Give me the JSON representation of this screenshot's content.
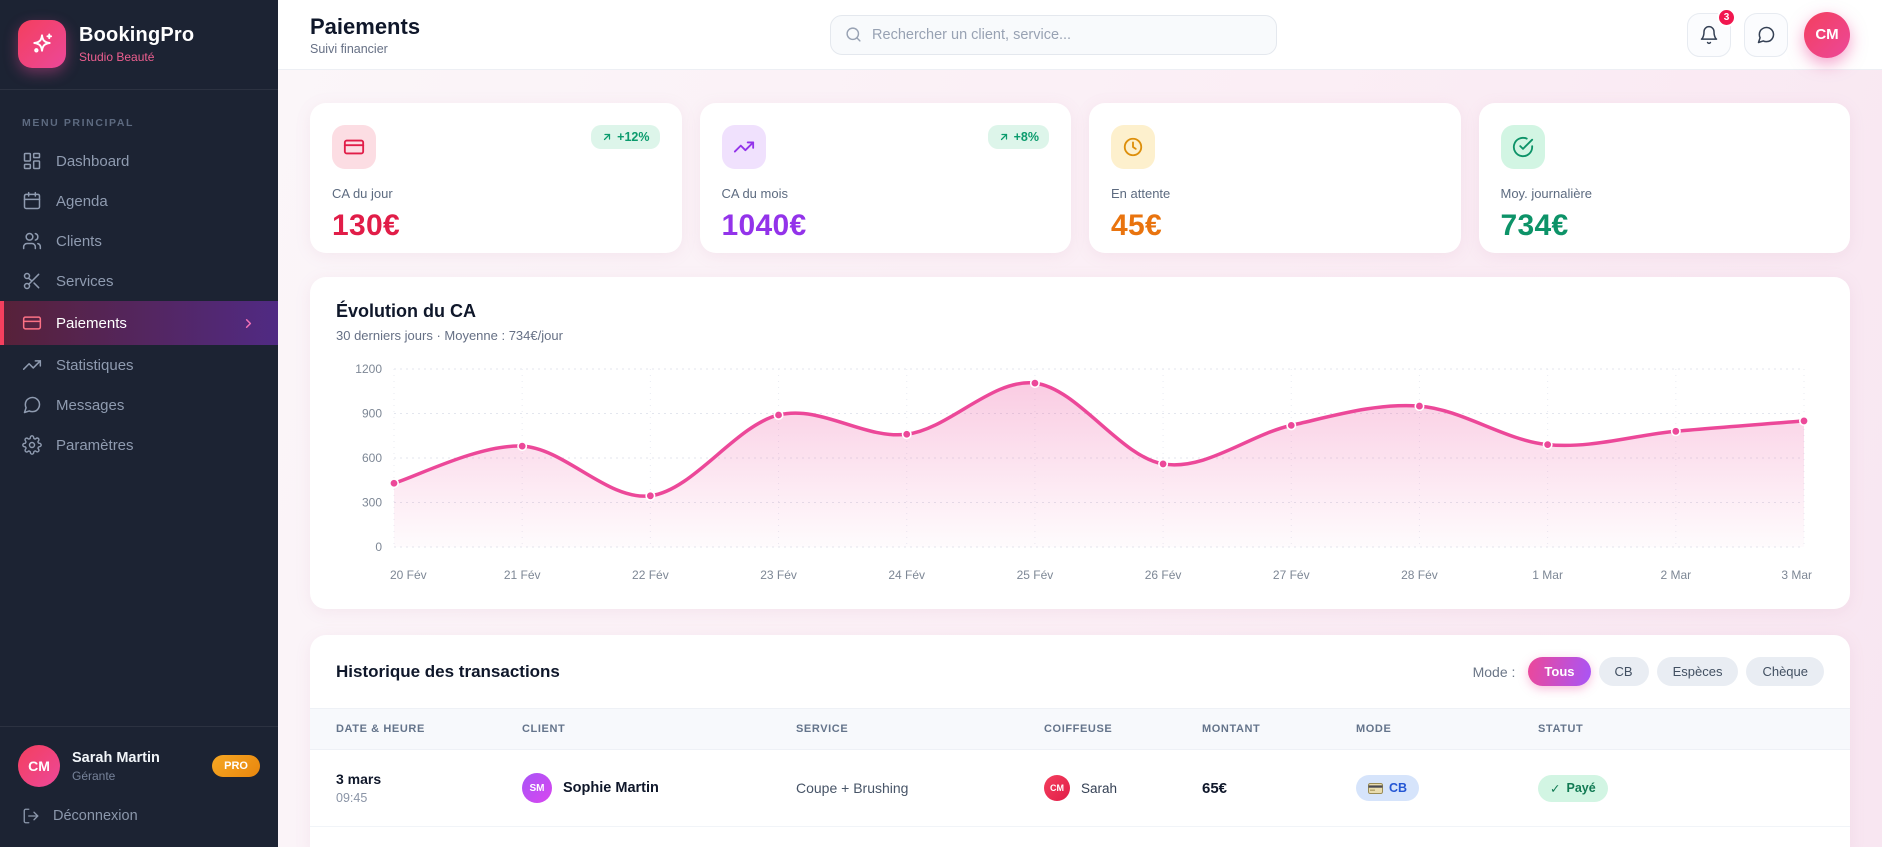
{
  "colors": {
    "accent_pink": "#ec4899",
    "accent_rose": "#e11d48",
    "accent_purple": "#9333ea",
    "accent_orange": "#e9740f",
    "accent_green": "#0d9368",
    "sidebar_bg": "#1c2333"
  },
  "sidebar": {
    "brand_name": "BookingPro",
    "brand_subtitle": "Studio Beauté",
    "section_label": "MENU PRINCIPAL",
    "items": [
      {
        "label": "Dashboard"
      },
      {
        "label": "Agenda"
      },
      {
        "label": "Clients"
      },
      {
        "label": "Services"
      },
      {
        "label": "Paiements",
        "active": true
      },
      {
        "label": "Statistiques"
      },
      {
        "label": "Messages"
      },
      {
        "label": "Paramètres"
      }
    ],
    "user": {
      "initials": "CM",
      "name": "Sarah Martin",
      "role": "Gérante",
      "badge": "PRO"
    },
    "logout_label": "Déconnexion"
  },
  "header": {
    "title": "Paiements",
    "subtitle": "Suivi financier",
    "search_placeholder": "Rechercher un client, service...",
    "notification_count": "3",
    "avatar_initials": "CM"
  },
  "stats": [
    {
      "label": "CA du jour",
      "value": "130€",
      "trend": "+12%"
    },
    {
      "label": "CA du mois",
      "value": "1040€",
      "trend": "+8%"
    },
    {
      "label": "En attente",
      "value": "45€"
    },
    {
      "label": "Moy. journalière",
      "value": "734€"
    }
  ],
  "chart_card": {
    "title": "Évolution du CA",
    "subtitle": "30 derniers jours · Moyenne : 734€/jour"
  },
  "chart_data": {
    "type": "area",
    "title": "Évolution du CA",
    "x": [
      "20 Fév",
      "21 Fév",
      "22 Fév",
      "23 Fév",
      "24 Fév",
      "25 Fév",
      "26 Fév",
      "27 Fév",
      "28 Fév",
      "1 Mar",
      "2 Mar",
      "3 Mar"
    ],
    "values": [
      430,
      680,
      345,
      890,
      760,
      1105,
      560,
      820,
      950,
      690,
      780,
      850
    ],
    "ylim": [
      0,
      1200
    ],
    "yticks": [
      0,
      300,
      600,
      900,
      1200
    ],
    "line_color": "#ec4899",
    "grid": true,
    "legend": "none"
  },
  "transactions": {
    "title": "Historique des transactions",
    "mode_label": "Mode :",
    "filters": [
      {
        "label": "Tous",
        "active": true
      },
      {
        "label": "CB"
      },
      {
        "label": "Espèces"
      },
      {
        "label": "Chèque"
      }
    ],
    "columns": [
      "DATE & HEURE",
      "CLIENT",
      "SERVICE",
      "COIFFEUSE",
      "MONTANT",
      "MODE",
      "STATUT"
    ],
    "rows": [
      {
        "date": "3 mars",
        "time": "09:45",
        "client": "Sophie Martin",
        "client_initials": "SM",
        "service": "Coupe + Brushing",
        "coiffeuse": "Sarah",
        "coiffeuse_initials": "CM",
        "montant": "65€",
        "mode": "CB",
        "statut": "Payé",
        "statut_check": "✓"
      }
    ]
  }
}
